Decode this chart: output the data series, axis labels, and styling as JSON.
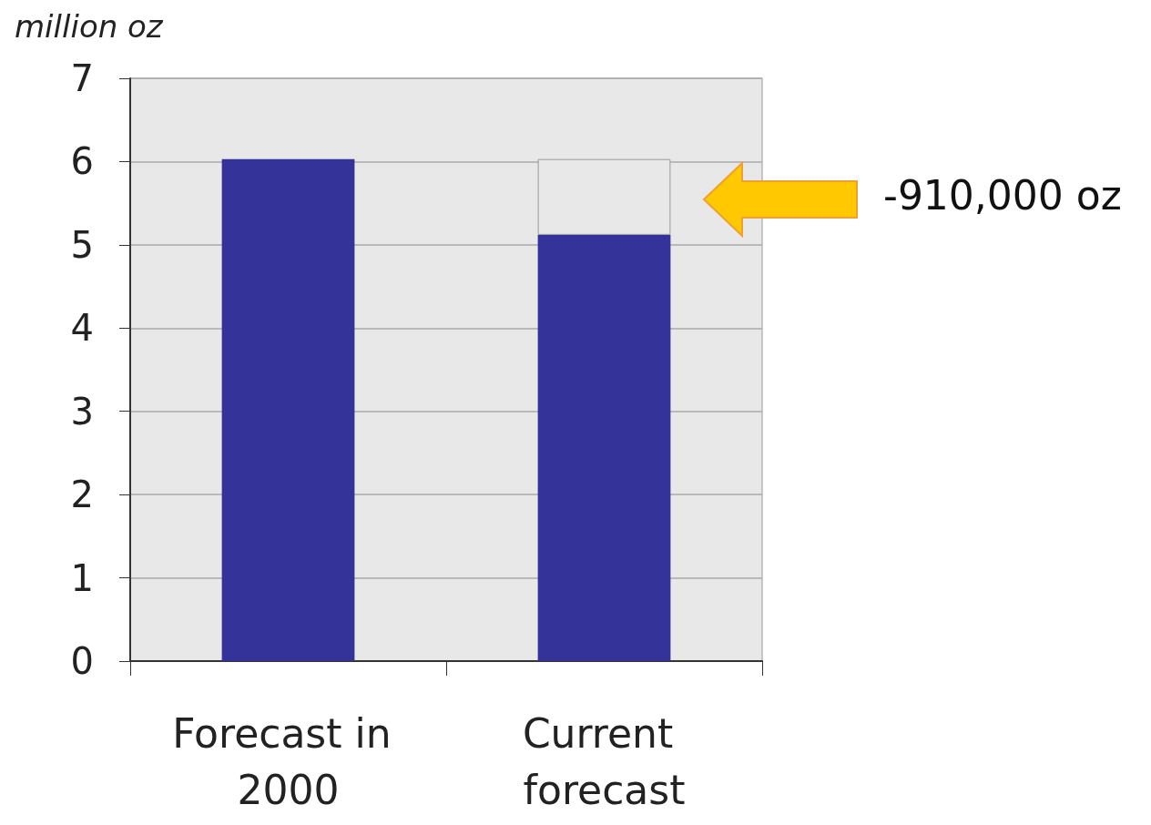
{
  "chart_data": {
    "type": "bar",
    "ylabel": "million oz",
    "categories": [
      "Forecast in 2000",
      "Current forecast"
    ],
    "series": [
      {
        "color": "#333399",
        "values": [
          6.03,
          5.12
        ]
      },
      {
        "color": "#e8e8e8",
        "values": [
          null,
          0.91
        ]
      }
    ],
    "stacked": true,
    "ylim": [
      0,
      7
    ],
    "yticks": [
      0,
      1,
      2,
      3,
      4,
      5,
      6,
      7
    ],
    "grid": "y",
    "annotations": [
      "-910,000 oz"
    ]
  }
}
